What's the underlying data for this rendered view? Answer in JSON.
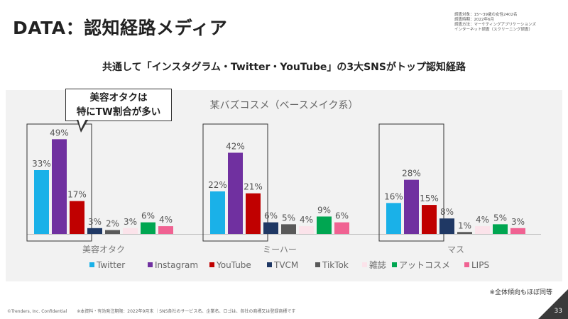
{
  "header": {
    "title": "DATA：認知経路メディア",
    "survey_info": [
      "調査対象：15～39歳の女性2402名",
      "調査時期：2022年6月",
      "調査方法：マーケティングアプリケーションズ",
      "インターネット調査（スクリーニング調査）"
    ]
  },
  "subtitle": "共通して「インスタグラム・Twitter・YouTube」の3大SNSがトップ認知経路",
  "callout": {
    "line1": "美容オタクは",
    "line2": "特にTW割合が多い"
  },
  "chart_data": {
    "type": "bar",
    "title": "某バズコスメ（ベースメイク系）",
    "categories": [
      "美容オタク",
      "ミーハー",
      "マス"
    ],
    "unit": "%",
    "ylim": [
      0,
      55
    ],
    "legend_position": "bottom",
    "highlighted_series": [
      "Twitter",
      "Instagram",
      "YouTube"
    ],
    "series": [
      {
        "name": "Twitter",
        "color": "#1ab1e8",
        "values": [
          33,
          22,
          16
        ]
      },
      {
        "name": "Instagram",
        "color": "#7030a0",
        "values": [
          49,
          42,
          28
        ]
      },
      {
        "name": "YouTube",
        "color": "#c00000",
        "values": [
          17,
          21,
          15
        ]
      },
      {
        "name": "TVCM",
        "color": "#1f3864",
        "values": [
          3,
          6,
          8
        ]
      },
      {
        "name": "TikTok",
        "color": "#595959",
        "values": [
          2,
          5,
          1
        ]
      },
      {
        "name": "雑誌",
        "color": "#fbe3ea",
        "values": [
          3,
          4,
          4
        ]
      },
      {
        "name": "アットコスメ",
        "color": "#00a651",
        "values": [
          6,
          9,
          5
        ]
      },
      {
        "name": "LIPS",
        "color": "#f06292",
        "values": [
          4,
          6,
          3
        ]
      }
    ]
  },
  "note": "※全体傾向もほぼ同等",
  "footer": {
    "copyright": "©Trenders, Inc. Confidential",
    "disclaimer": "※本資料・有効発注期限：2022年9月末 ｜SNS各社のサービス名、企業名、ロゴは、各社の商標又は登録商標です"
  },
  "page_number": "33"
}
